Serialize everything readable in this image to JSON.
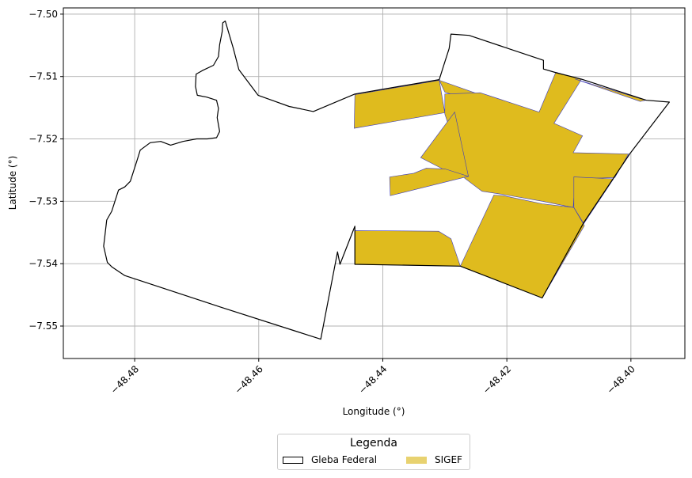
{
  "chart_data": {
    "type": "map",
    "xlabel": "Longitude (°)",
    "ylabel": "Latitude (°)",
    "xlim": [
      -48.4915,
      -48.3913
    ],
    "ylim": [
      -7.5552,
      -7.499
    ],
    "x_ticks": [
      -48.48,
      -48.46,
      -48.44,
      -48.42,
      -48.4
    ],
    "x_tick_labels": [
      "−48.48",
      "−48.46",
      "−48.44",
      "−48.42",
      "−48.40"
    ],
    "y_ticks": [
      -7.5,
      -7.51,
      -7.52,
      -7.53,
      -7.54,
      -7.55
    ],
    "y_tick_labels": [
      "−7.50",
      "−7.51",
      "−7.52",
      "−7.53",
      "−7.54",
      "−7.55"
    ],
    "grid": true,
    "colors": {
      "gleba_edge": "#000000",
      "gleba_fill": "#ffffff",
      "sigef_fill": "#dfbb1e",
      "sigef_edge": "#3b3bbf",
      "grid": "#b0b0b0"
    },
    "gleba_outline": [
      [
        -48.4654,
        -7.5011
      ],
      [
        -48.4641,
        -7.5055
      ],
      [
        -48.4632,
        -7.5089
      ],
      [
        -48.4601,
        -7.513
      ],
      [
        -48.4551,
        -7.5148
      ],
      [
        -48.4512,
        -7.5156
      ],
      [
        -48.4445,
        -7.5128
      ],
      [
        -48.4309,
        -7.5105
      ],
      [
        -48.4302,
        -7.5083
      ],
      [
        -48.4293,
        -7.5055
      ],
      [
        -48.429,
        -7.5032
      ],
      [
        -48.4261,
        -7.5034
      ],
      [
        -48.4141,
        -7.5074
      ],
      [
        -48.4141,
        -7.5088
      ],
      [
        -48.412,
        -7.5094
      ],
      [
        -48.408,
        -7.5104
      ],
      [
        -48.3975,
        -7.5138
      ],
      [
        -48.3938,
        -7.5141
      ],
      [
        -48.4002,
        -7.5224
      ],
      [
        -48.4076,
        -7.5334
      ],
      [
        -48.4143,
        -7.5455
      ],
      [
        -48.4275,
        -7.5404
      ],
      [
        -48.4445,
        -7.5401
      ],
      [
        -48.4445,
        -7.534
      ],
      [
        -48.4469,
        -7.5401
      ],
      [
        -48.4473,
        -7.5381
      ],
      [
        -48.45,
        -7.5521
      ],
      [
        -48.466,
        -7.547
      ],
      [
        -48.4816,
        -7.5419
      ],
      [
        -48.4837,
        -7.5405
      ],
      [
        -48.4844,
        -7.5398
      ],
      [
        -48.485,
        -7.5372
      ],
      [
        -48.4848,
        -7.5355
      ],
      [
        -48.4845,
        -7.533
      ],
      [
        -48.4837,
        -7.5316
      ],
      [
        -48.4826,
        -7.5282
      ],
      [
        -48.4816,
        -7.5277
      ],
      [
        -48.4807,
        -7.5268
      ],
      [
        -48.4796,
        -7.5234
      ],
      [
        -48.4791,
        -7.5218
      ],
      [
        -48.4775,
        -7.5206
      ],
      [
        -48.4758,
        -7.5204
      ],
      [
        -48.4742,
        -7.521
      ],
      [
        -48.4722,
        -7.5204
      ],
      [
        -48.47,
        -7.52
      ],
      [
        -48.4683,
        -7.52
      ],
      [
        -48.4668,
        -7.5198
      ],
      [
        -48.4663,
        -7.5188
      ],
      [
        -48.4667,
        -7.5166
      ],
      [
        -48.4665,
        -7.5151
      ],
      [
        -48.4668,
        -7.5138
      ],
      [
        -48.4684,
        -7.5133
      ],
      [
        -48.4699,
        -7.513
      ],
      [
        -48.4702,
        -7.5116
      ],
      [
        -48.4701,
        -7.5096
      ],
      [
        -48.469,
        -7.509
      ],
      [
        -48.4673,
        -7.5082
      ],
      [
        -48.4665,
        -7.5068
      ],
      [
        -48.4663,
        -7.5049
      ],
      [
        -48.4659,
        -7.5028
      ],
      [
        -48.4658,
        -7.5014
      ],
      [
        -48.4654,
        -7.5011
      ]
    ],
    "sigef_parcels": [
      [
        [
          -48.4445,
          -7.5129
        ],
        [
          -48.4309,
          -7.5106
        ],
        [
          -48.43,
          -7.5158
        ],
        [
          -48.4446,
          -7.5183
        ]
      ],
      [
        [
          -48.4309,
          -7.5106
        ],
        [
          -48.4246,
          -7.5128
        ],
        [
          -48.4251,
          -7.5162
        ],
        [
          -48.4231,
          -7.5148
        ],
        [
          -48.43,
          -7.5125
        ]
      ],
      [
        [
          -48.4243,
          -7.5126
        ],
        [
          -48.4148,
          -7.5157
        ],
        [
          -48.4121,
          -7.5093
        ],
        [
          -48.408,
          -7.5105
        ],
        [
          -48.4124,
          -7.5175
        ],
        [
          -48.4078,
          -7.5195
        ],
        [
          -48.4093,
          -7.5222
        ],
        [
          -48.4004,
          -7.5224
        ],
        [
          -48.4026,
          -7.5262
        ],
        [
          -48.409,
          -7.5264
        ],
        [
          -48.4093,
          -7.531
        ],
        [
          -48.4142,
          -7.53
        ],
        [
          -48.42,
          -7.529
        ],
        [
          -48.424,
          -7.5284
        ],
        [
          -48.4268,
          -7.5263
        ],
        [
          -48.4287,
          -7.52
        ],
        [
          -48.43,
          -7.516
        ],
        [
          -48.43,
          -7.5128
        ]
      ],
      [
        [
          -48.409,
          -7.5104
        ],
        [
          -48.3976,
          -7.5138
        ],
        [
          -48.3985,
          -7.514
        ]
      ],
      [
        [
          -48.4284,
          -7.5157
        ],
        [
          -48.4262,
          -7.526
        ],
        [
          -48.43,
          -7.525
        ],
        [
          -48.4339,
          -7.523
        ]
      ],
      [
        [
          -48.4389,
          -7.5261
        ],
        [
          -48.4388,
          -7.5291
        ],
        [
          -48.4262,
          -7.526
        ],
        [
          -48.43,
          -7.5248
        ],
        [
          -48.433,
          -7.5247
        ],
        [
          -48.435,
          -7.5255
        ]
      ],
      [
        [
          -48.4445,
          -7.5347
        ],
        [
          -48.431,
          -7.5348
        ],
        [
          -48.429,
          -7.536
        ],
        [
          -48.4275,
          -7.5404
        ],
        [
          -48.4445,
          -7.5401
        ]
      ],
      [
        [
          -48.4205,
          -7.5291
        ],
        [
          -48.4143,
          -7.5304
        ],
        [
          -48.4092,
          -7.531
        ],
        [
          -48.4075,
          -7.5339
        ],
        [
          -48.4143,
          -7.5455
        ],
        [
          -48.4275,
          -7.5404
        ],
        [
          -48.4221,
          -7.529
        ]
      ],
      [
        [
          -48.4092,
          -7.5261
        ],
        [
          -48.4028,
          -7.5264
        ],
        [
          -48.4076,
          -7.5336
        ],
        [
          -48.4092,
          -7.531
        ]
      ]
    ]
  },
  "legend": {
    "title": "Legenda",
    "items": [
      {
        "label": "Gleba Federal",
        "fill": "#ffffff",
        "edge": "#000000"
      },
      {
        "label": "SIGEF",
        "fill": "#e8d270",
        "edge": "#e8d270"
      }
    ]
  }
}
